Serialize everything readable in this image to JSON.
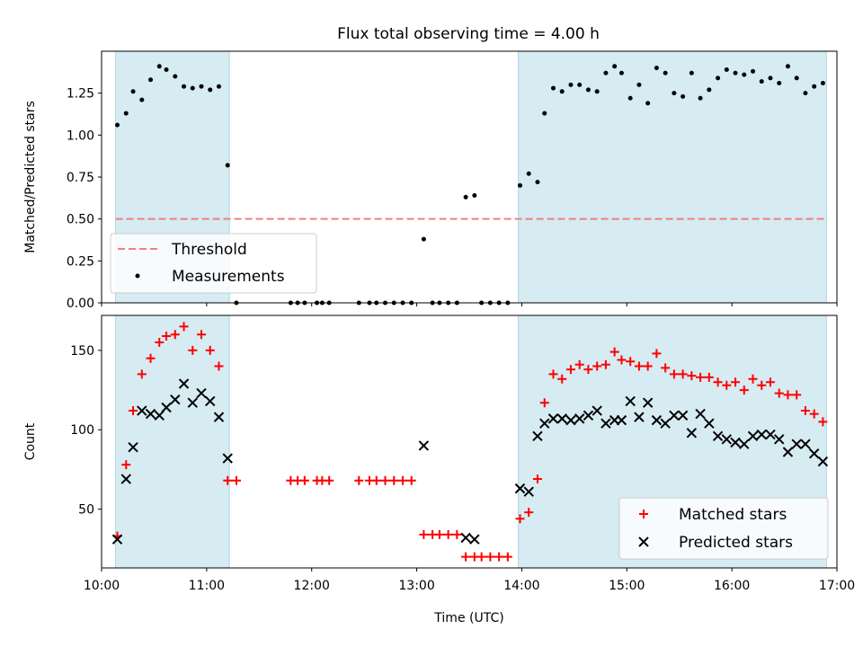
{
  "figure": {
    "title": "Flux total observing time = 4.00 h",
    "shade_color": "#add8e6",
    "threshold_color": "#f08080",
    "matched_color": "#ff0000",
    "predicted_color": "#000000"
  },
  "chart_data": [
    {
      "type": "scatter",
      "panel": "top",
      "ylabel": "Matched/Predicted stars",
      "xlabel": "",
      "xlim": [
        "10:00",
        "17:00"
      ],
      "ylim": [
        0,
        1.5
      ],
      "yticks": [
        "0.00",
        "0.25",
        "0.50",
        "0.75",
        "1.00",
        "1.25"
      ],
      "shaded_intervals": [
        [
          "10:08",
          "11:13"
        ],
        [
          "13:58",
          "16:54"
        ]
      ],
      "threshold": {
        "name": "Threshold",
        "value": 0.5,
        "x_range": [
          "10:08",
          "16:54"
        ],
        "style": "dashed"
      },
      "legend": {
        "placement": "lower-left",
        "entries": [
          "Threshold",
          "Measurements"
        ]
      },
      "series": [
        {
          "name": "Measurements",
          "points": [
            [
              "10:09",
              1.06
            ],
            [
              "10:14",
              1.13
            ],
            [
              "10:18",
              1.26
            ],
            [
              "10:23",
              1.21
            ],
            [
              "10:28",
              1.33
            ],
            [
              "10:33",
              1.41
            ],
            [
              "10:37",
              1.39
            ],
            [
              "10:42",
              1.35
            ],
            [
              "10:47",
              1.29
            ],
            [
              "10:52",
              1.28
            ],
            [
              "10:57",
              1.29
            ],
            [
              "11:02",
              1.27
            ],
            [
              "11:07",
              1.29
            ],
            [
              "11:12",
              0.82
            ],
            [
              "11:17",
              0.0
            ],
            [
              "11:48",
              0.0
            ],
            [
              "11:52",
              0.0
            ],
            [
              "11:56",
              0.0
            ],
            [
              "12:03",
              0.0
            ],
            [
              "12:06",
              0.0
            ],
            [
              "12:10",
              0.0
            ],
            [
              "12:27",
              0.0
            ],
            [
              "12:33",
              0.0
            ],
            [
              "12:37",
              0.0
            ],
            [
              "12:42",
              0.0
            ],
            [
              "12:47",
              0.0
            ],
            [
              "12:52",
              0.0
            ],
            [
              "12:57",
              0.0
            ],
            [
              "13:04",
              0.38
            ],
            [
              "13:09",
              0.0
            ],
            [
              "13:13",
              0.0
            ],
            [
              "13:18",
              0.0
            ],
            [
              "13:23",
              0.0
            ],
            [
              "13:28",
              0.63
            ],
            [
              "13:33",
              0.64
            ],
            [
              "13:37",
              0.0
            ],
            [
              "13:42",
              0.0
            ],
            [
              "13:47",
              0.0
            ],
            [
              "13:52",
              0.0
            ],
            [
              "13:59",
              0.7
            ],
            [
              "14:04",
              0.77
            ],
            [
              "14:09",
              0.72
            ],
            [
              "14:13",
              1.13
            ],
            [
              "14:18",
              1.28
            ],
            [
              "14:23",
              1.26
            ],
            [
              "14:28",
              1.3
            ],
            [
              "14:33",
              1.3
            ],
            [
              "14:38",
              1.27
            ],
            [
              "14:43",
              1.26
            ],
            [
              "14:48",
              1.37
            ],
            [
              "14:53",
              1.41
            ],
            [
              "14:57",
              1.37
            ],
            [
              "15:02",
              1.22
            ],
            [
              "15:07",
              1.3
            ],
            [
              "15:12",
              1.19
            ],
            [
              "15:17",
              1.4
            ],
            [
              "15:22",
              1.37
            ],
            [
              "15:27",
              1.25
            ],
            [
              "15:32",
              1.23
            ],
            [
              "15:37",
              1.37
            ],
            [
              "15:42",
              1.22
            ],
            [
              "15:47",
              1.27
            ],
            [
              "15:52",
              1.34
            ],
            [
              "15:57",
              1.39
            ],
            [
              "16:02",
              1.37
            ],
            [
              "16:07",
              1.36
            ],
            [
              "16:12",
              1.38
            ],
            [
              "16:17",
              1.32
            ],
            [
              "16:22",
              1.34
            ],
            [
              "16:27",
              1.31
            ],
            [
              "16:32",
              1.41
            ],
            [
              "16:37",
              1.34
            ],
            [
              "16:42",
              1.25
            ],
            [
              "16:47",
              1.29
            ],
            [
              "16:52",
              1.31
            ]
          ]
        }
      ]
    },
    {
      "type": "scatter",
      "panel": "bottom",
      "ylabel": "Count",
      "xlabel": "Time (UTC)",
      "xlim": [
        "10:00",
        "17:00"
      ],
      "ylim": [
        13,
        172
      ],
      "yticks": [
        "50",
        "100",
        "150"
      ],
      "xticks": [
        "10:00",
        "11:00",
        "12:00",
        "13:00",
        "14:00",
        "15:00",
        "16:00",
        "17:00"
      ],
      "shaded_intervals": [
        [
          "10:08",
          "11:13"
        ],
        [
          "13:58",
          "16:54"
        ]
      ],
      "legend": {
        "placement": "lower-right",
        "entries": [
          "Matched stars",
          "Predicted stars"
        ]
      },
      "series": [
        {
          "name": "Matched stars",
          "marker": "+",
          "points": [
            [
              "10:09",
              33
            ],
            [
              "10:14",
              78
            ],
            [
              "10:18",
              112
            ],
            [
              "10:23",
              135
            ],
            [
              "10:28",
              145
            ],
            [
              "10:33",
              155
            ],
            [
              "10:37",
              159
            ],
            [
              "10:42",
              160
            ],
            [
              "10:47",
              165
            ],
            [
              "10:52",
              150
            ],
            [
              "10:57",
              160
            ],
            [
              "11:02",
              150
            ],
            [
              "11:07",
              140
            ],
            [
              "11:12",
              68
            ],
            [
              "11:17",
              68
            ],
            [
              "11:48",
              68
            ],
            [
              "11:52",
              68
            ],
            [
              "11:56",
              68
            ],
            [
              "12:03",
              68
            ],
            [
              "12:06",
              68
            ],
            [
              "12:10",
              68
            ],
            [
              "12:27",
              68
            ],
            [
              "12:33",
              68
            ],
            [
              "12:37",
              68
            ],
            [
              "12:42",
              68
            ],
            [
              "12:47",
              68
            ],
            [
              "12:52",
              68
            ],
            [
              "12:57",
              68
            ],
            [
              "13:04",
              34
            ],
            [
              "13:09",
              34
            ],
            [
              "13:13",
              34
            ],
            [
              "13:18",
              34
            ],
            [
              "13:23",
              34
            ],
            [
              "13:28",
              20
            ],
            [
              "13:33",
              20
            ],
            [
              "13:37",
              20
            ],
            [
              "13:42",
              20
            ],
            [
              "13:47",
              20
            ],
            [
              "13:52",
              20
            ],
            [
              "13:59",
              44
            ],
            [
              "14:04",
              48
            ],
            [
              "14:09",
              69
            ],
            [
              "14:13",
              117
            ],
            [
              "14:18",
              135
            ],
            [
              "14:23",
              132
            ],
            [
              "14:28",
              138
            ],
            [
              "14:33",
              141
            ],
            [
              "14:38",
              138
            ],
            [
              "14:43",
              140
            ],
            [
              "14:48",
              141
            ],
            [
              "14:53",
              149
            ],
            [
              "14:57",
              144
            ],
            [
              "15:02",
              143
            ],
            [
              "15:07",
              140
            ],
            [
              "15:12",
              140
            ],
            [
              "15:17",
              148
            ],
            [
              "15:22",
              139
            ],
            [
              "15:27",
              135
            ],
            [
              "15:32",
              135
            ],
            [
              "15:37",
              134
            ],
            [
              "15:42",
              133
            ],
            [
              "15:47",
              133
            ],
            [
              "15:52",
              130
            ],
            [
              "15:57",
              128
            ],
            [
              "16:02",
              130
            ],
            [
              "16:07",
              125
            ],
            [
              "16:12",
              132
            ],
            [
              "16:17",
              128
            ],
            [
              "16:22",
              130
            ],
            [
              "16:27",
              123
            ],
            [
              "16:32",
              122
            ],
            [
              "16:37",
              122
            ],
            [
              "16:42",
              112
            ],
            [
              "16:47",
              110
            ],
            [
              "16:52",
              105
            ]
          ]
        },
        {
          "name": "Predicted stars",
          "marker": "x",
          "points": [
            [
              "10:09",
              31
            ],
            [
              "10:14",
              69
            ],
            [
              "10:18",
              89
            ],
            [
              "10:23",
              112
            ],
            [
              "10:28",
              110
            ],
            [
              "10:33",
              109
            ],
            [
              "10:37",
              114
            ],
            [
              "10:42",
              119
            ],
            [
              "10:47",
              129
            ],
            [
              "10:52",
              117
            ],
            [
              "10:57",
              123
            ],
            [
              "11:02",
              118
            ],
            [
              "11:07",
              108
            ],
            [
              "11:12",
              82
            ],
            [
              "13:04",
              90
            ],
            [
              "13:28",
              32
            ],
            [
              "13:33",
              31
            ],
            [
              "13:59",
              63
            ],
            [
              "14:04",
              61
            ],
            [
              "14:09",
              96
            ],
            [
              "14:13",
              104
            ],
            [
              "14:18",
              107
            ],
            [
              "14:23",
              107
            ],
            [
              "14:28",
              106
            ],
            [
              "14:33",
              107
            ],
            [
              "14:38",
              109
            ],
            [
              "14:43",
              112
            ],
            [
              "14:48",
              104
            ],
            [
              "14:53",
              106
            ],
            [
              "14:57",
              106
            ],
            [
              "15:02",
              118
            ],
            [
              "15:07",
              108
            ],
            [
              "15:12",
              117
            ],
            [
              "15:17",
              106
            ],
            [
              "15:22",
              104
            ],
            [
              "15:27",
              109
            ],
            [
              "15:32",
              109
            ],
            [
              "15:37",
              98
            ],
            [
              "15:42",
              110
            ],
            [
              "15:47",
              104
            ],
            [
              "15:52",
              96
            ],
            [
              "15:57",
              94
            ],
            [
              "16:02",
              92
            ],
            [
              "16:07",
              91
            ],
            [
              "16:12",
              96
            ],
            [
              "16:17",
              97
            ],
            [
              "16:22",
              97
            ],
            [
              "16:27",
              94
            ],
            [
              "16:32",
              86
            ],
            [
              "16:37",
              91
            ],
            [
              "16:42",
              91
            ],
            [
              "16:47",
              85
            ],
            [
              "16:52",
              80
            ]
          ]
        }
      ]
    }
  ]
}
